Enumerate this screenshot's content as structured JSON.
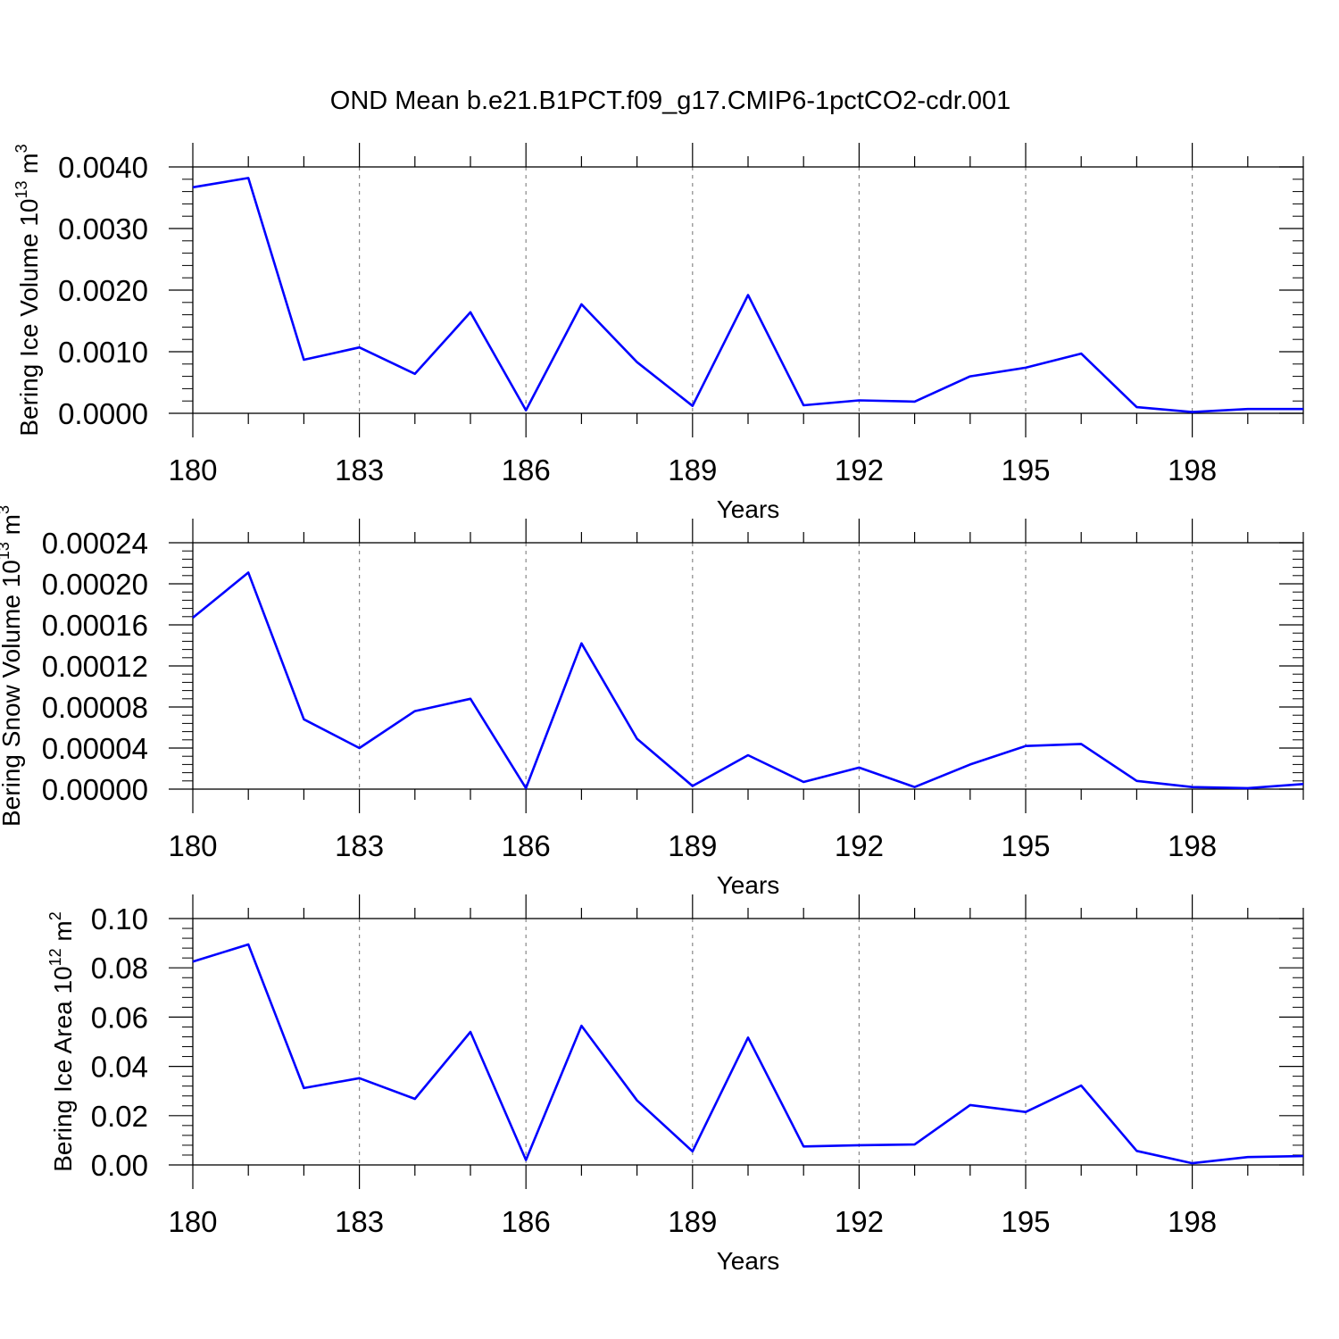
{
  "figure": {
    "title": "OND Mean b.e21.B1PCT.f09_g17.CMIP6-1pctCO2-cdr.001"
  },
  "colors": {
    "line": "#0000ff",
    "axis": "#000000",
    "grid": "#888888",
    "background": "#ffffff"
  },
  "chart_data": [
    {
      "type": "line",
      "ylabel": "Bering Ice Volume 10",
      "ylabel_exp": "13",
      "ylabel_unit": " m",
      "ylabel_unit_exp": "3",
      "xlabel": "Years",
      "xlim": [
        180,
        200
      ],
      "ylim": [
        0,
        0.004
      ],
      "grid": "vertical dashed at labeled x ticks",
      "x_ticks": [
        180,
        183,
        186,
        189,
        192,
        195,
        198
      ],
      "x_tick_labels": [
        "180",
        "183",
        "186",
        "189",
        "192",
        "195",
        "198"
      ],
      "y_ticks": [
        0,
        0.001,
        0.002,
        0.003,
        0.004
      ],
      "y_tick_labels": [
        "0.0000",
        "0.0010",
        "0.0020",
        "0.0030",
        "0.0040"
      ],
      "x": [
        180,
        181,
        182,
        183,
        184,
        185,
        186,
        187,
        188,
        189,
        190,
        191,
        192,
        193,
        194,
        195,
        196,
        197,
        198,
        199,
        200
      ],
      "values": [
        0.00367,
        0.00382,
        0.00087,
        0.00107,
        0.00064,
        0.00164,
        5e-05,
        0.00177,
        0.00083,
        0.00012,
        0.00192,
        0.00013,
        0.00021,
        0.00019,
        0.0006,
        0.00074,
        0.00097,
        0.0001,
        2e-05,
        7e-05,
        7e-05
      ]
    },
    {
      "type": "line",
      "ylabel": "Bering Snow Volume 10",
      "ylabel_exp": "13",
      "ylabel_unit": " m",
      "ylabel_unit_exp": "3",
      "xlabel": "Years",
      "xlim": [
        180,
        200
      ],
      "ylim": [
        0,
        0.00024
      ],
      "grid": "vertical dashed at labeled x ticks",
      "x_ticks": [
        180,
        183,
        186,
        189,
        192,
        195,
        198
      ],
      "x_tick_labels": [
        "180",
        "183",
        "186",
        "189",
        "192",
        "195",
        "198"
      ],
      "y_ticks": [
        0,
        4e-05,
        8e-05,
        0.00012,
        0.00016,
        0.0002,
        0.00024
      ],
      "y_tick_labels": [
        "0.00000",
        "0.00004",
        "0.00008",
        "0.00012",
        "0.00016",
        "0.00020",
        "0.00024"
      ],
      "x": [
        180,
        181,
        182,
        183,
        184,
        185,
        186,
        187,
        188,
        189,
        190,
        191,
        192,
        193,
        194,
        195,
        196,
        197,
        198,
        199,
        200
      ],
      "values": [
        0.000167,
        0.000211,
        6.8e-05,
        4e-05,
        7.6e-05,
        8.8e-05,
        1e-06,
        0.000142,
        4.9e-05,
        3e-06,
        3.3e-05,
        7e-06,
        2.1e-05,
        2e-06,
        2.4e-05,
        4.2e-05,
        4.4e-05,
        8e-06,
        2e-06,
        1e-06,
        5e-06
      ]
    },
    {
      "type": "line",
      "ylabel": "Bering Ice Area 10",
      "ylabel_exp": "12",
      "ylabel_unit": " m",
      "ylabel_unit_exp": "2",
      "xlabel": "Years",
      "xlim": [
        180,
        200
      ],
      "ylim": [
        0,
        0.1
      ],
      "grid": "vertical dashed at labeled x ticks",
      "x_ticks": [
        180,
        183,
        186,
        189,
        192,
        195,
        198
      ],
      "x_tick_labels": [
        "180",
        "183",
        "186",
        "189",
        "192",
        "195",
        "198"
      ],
      "y_ticks": [
        0,
        0.02,
        0.04,
        0.06,
        0.08,
        0.1
      ],
      "y_tick_labels": [
        "0.00",
        "0.02",
        "0.04",
        "0.06",
        "0.08",
        "0.10"
      ],
      "x": [
        180,
        181,
        182,
        183,
        184,
        185,
        186,
        187,
        188,
        189,
        190,
        191,
        192,
        193,
        194,
        195,
        196,
        197,
        198,
        199,
        200
      ],
      "values": [
        0.0825,
        0.0895,
        0.0312,
        0.0352,
        0.0268,
        0.054,
        0.002,
        0.0565,
        0.0262,
        0.0055,
        0.0517,
        0.0075,
        0.008,
        0.0083,
        0.0243,
        0.0215,
        0.0322,
        0.0057,
        0.0007,
        0.0032,
        0.0036
      ]
    }
  ]
}
